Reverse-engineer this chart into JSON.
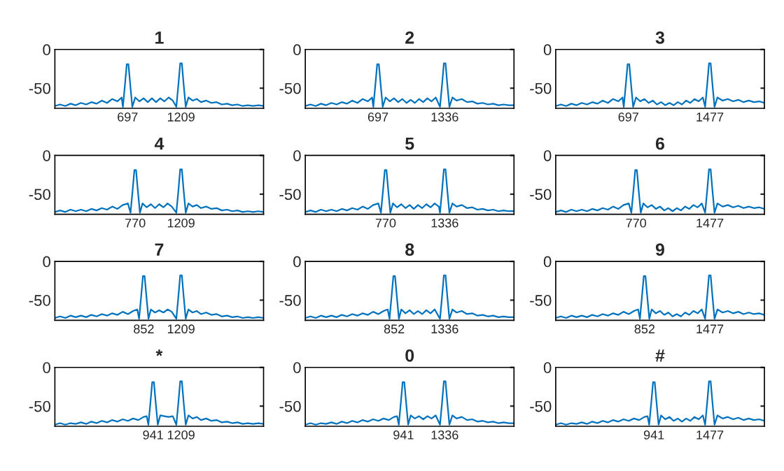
{
  "chart_data": [
    {
      "type": "line",
      "title": "1",
      "color": "#0072bd",
      "xlim": [
        0,
        2000
      ],
      "xticks": [
        697,
        1209
      ],
      "ylim": [
        -76,
        0
      ],
      "yticks": [
        -50,
        0
      ],
      "x": [
        0,
        50,
        100,
        150,
        200,
        250,
        300,
        350,
        400,
        450,
        500,
        550,
        600,
        640,
        652,
        672,
        689,
        705,
        722,
        742,
        770,
        810,
        850,
        890,
        930,
        970,
        1010,
        1050,
        1090,
        1130,
        1164,
        1184,
        1201,
        1217,
        1234,
        1254,
        1280,
        1320,
        1360,
        1400,
        1450,
        1500,
        1550,
        1600,
        1650,
        1700,
        1750,
        1800,
        1850,
        1900,
        1950,
        2000
      ],
      "values": [
        -73,
        -71,
        -73,
        -70,
        -72,
        -69,
        -71,
        -68,
        -70,
        -66,
        -69,
        -64,
        -67,
        -62,
        -74,
        -45,
        -19,
        -19,
        -45,
        -74,
        -62,
        -67,
        -63,
        -68,
        -63,
        -68,
        -63,
        -67,
        -62,
        -66,
        -74,
        -45,
        -18,
        -18,
        -45,
        -74,
        -62,
        -66,
        -64,
        -68,
        -66,
        -69,
        -68,
        -71,
        -70,
        -72,
        -71,
        -73,
        -72,
        -73,
        -72,
        -73
      ]
    },
    {
      "type": "line",
      "title": "2",
      "color": "#0072bd",
      "xlim": [
        0,
        2000
      ],
      "xticks": [
        697,
        1336
      ],
      "ylim": [
        -76,
        0
      ],
      "yticks": [
        -50,
        0
      ],
      "x": [
        0,
        50,
        100,
        150,
        200,
        250,
        300,
        350,
        400,
        450,
        500,
        550,
        600,
        640,
        652,
        672,
        689,
        705,
        722,
        742,
        770,
        810,
        850,
        890,
        930,
        970,
        1010,
        1050,
        1090,
        1130,
        1170,
        1210,
        1250,
        1291,
        1311,
        1328,
        1344,
        1361,
        1381,
        1410,
        1450,
        1500,
        1550,
        1600,
        1650,
        1700,
        1750,
        1800,
        1850,
        1900,
        1950,
        2000
      ],
      "values": [
        -73,
        -71,
        -73,
        -70,
        -72,
        -69,
        -71,
        -68,
        -70,
        -66,
        -69,
        -64,
        -67,
        -62,
        -74,
        -45,
        -19,
        -19,
        -45,
        -74,
        -62,
        -67,
        -63,
        -68,
        -64,
        -69,
        -65,
        -69,
        -64,
        -68,
        -63,
        -67,
        -62,
        -74,
        -45,
        -18,
        -18,
        -45,
        -74,
        -62,
        -66,
        -64,
        -68,
        -67,
        -70,
        -69,
        -71,
        -70,
        -72,
        -71,
        -72,
        -72
      ]
    },
    {
      "type": "line",
      "title": "3",
      "color": "#0072bd",
      "xlim": [
        0,
        2000
      ],
      "xticks": [
        697,
        1477
      ],
      "ylim": [
        -76,
        0
      ],
      "yticks": [
        -50,
        0
      ],
      "x": [
        0,
        50,
        100,
        150,
        200,
        250,
        300,
        350,
        400,
        450,
        500,
        550,
        600,
        640,
        652,
        672,
        689,
        705,
        722,
        742,
        770,
        810,
        850,
        890,
        930,
        970,
        1010,
        1050,
        1090,
        1130,
        1170,
        1210,
        1250,
        1290,
        1330,
        1370,
        1410,
        1432,
        1452,
        1469,
        1485,
        1502,
        1522,
        1550,
        1600,
        1650,
        1700,
        1750,
        1800,
        1850,
        1900,
        1950,
        2000
      ],
      "values": [
        -73,
        -71,
        -73,
        -70,
        -72,
        -69,
        -71,
        -68,
        -70,
        -66,
        -69,
        -64,
        -67,
        -62,
        -74,
        -45,
        -19,
        -19,
        -45,
        -74,
        -62,
        -67,
        -64,
        -69,
        -66,
        -71,
        -68,
        -72,
        -69,
        -72,
        -68,
        -71,
        -66,
        -69,
        -64,
        -67,
        -62,
        -74,
        -45,
        -18,
        -18,
        -45,
        -74,
        -62,
        -66,
        -64,
        -67,
        -65,
        -68,
        -66,
        -68,
        -67,
        -69
      ]
    },
    {
      "type": "line",
      "title": "4",
      "color": "#0072bd",
      "xlim": [
        0,
        2000
      ],
      "xticks": [
        770,
        1209
      ],
      "ylim": [
        -76,
        0
      ],
      "yticks": [
        -50,
        0
      ],
      "x": [
        0,
        50,
        100,
        150,
        200,
        250,
        300,
        350,
        400,
        450,
        500,
        550,
        600,
        650,
        700,
        725,
        745,
        762,
        778,
        795,
        815,
        840,
        880,
        920,
        960,
        1000,
        1040,
        1080,
        1120,
        1164,
        1184,
        1201,
        1217,
        1234,
        1254,
        1280,
        1320,
        1360,
        1400,
        1450,
        1500,
        1550,
        1600,
        1650,
        1700,
        1750,
        1800,
        1850,
        1900,
        1950,
        2000
      ],
      "values": [
        -73,
        -71,
        -73,
        -70,
        -72,
        -70,
        -72,
        -69,
        -71,
        -68,
        -70,
        -66,
        -69,
        -64,
        -62,
        -74,
        -45,
        -19,
        -19,
        -45,
        -74,
        -62,
        -67,
        -63,
        -68,
        -63,
        -67,
        -62,
        -66,
        -74,
        -45,
        -18,
        -18,
        -45,
        -74,
        -62,
        -66,
        -64,
        -68,
        -66,
        -69,
        -68,
        -71,
        -70,
        -72,
        -71,
        -73,
        -72,
        -73,
        -72,
        -73
      ]
    },
    {
      "type": "line",
      "title": "5",
      "color": "#0072bd",
      "xlim": [
        0,
        2000
      ],
      "xticks": [
        770,
        1336
      ],
      "ylim": [
        -76,
        0
      ],
      "yticks": [
        -50,
        0
      ],
      "x": [
        0,
        50,
        100,
        150,
        200,
        250,
        300,
        350,
        400,
        450,
        500,
        550,
        600,
        650,
        700,
        725,
        745,
        762,
        778,
        795,
        815,
        840,
        880,
        920,
        960,
        1000,
        1040,
        1080,
        1120,
        1160,
        1200,
        1240,
        1280,
        1291,
        1311,
        1328,
        1344,
        1361,
        1381,
        1410,
        1450,
        1500,
        1550,
        1600,
        1650,
        1700,
        1750,
        1800,
        1850,
        1900,
        1950,
        2000
      ],
      "values": [
        -73,
        -71,
        -73,
        -70,
        -72,
        -70,
        -72,
        -69,
        -71,
        -68,
        -70,
        -66,
        -69,
        -64,
        -62,
        -74,
        -45,
        -19,
        -19,
        -45,
        -74,
        -62,
        -67,
        -63,
        -68,
        -64,
        -69,
        -64,
        -68,
        -63,
        -67,
        -62,
        -66,
        -74,
        -45,
        -18,
        -18,
        -45,
        -74,
        -62,
        -66,
        -64,
        -68,
        -67,
        -70,
        -69,
        -71,
        -70,
        -72,
        -71,
        -72,
        -72
      ]
    },
    {
      "type": "line",
      "title": "6",
      "color": "#0072bd",
      "xlim": [
        0,
        2000
      ],
      "xticks": [
        770,
        1477
      ],
      "ylim": [
        -76,
        0
      ],
      "yticks": [
        -50,
        0
      ],
      "x": [
        0,
        50,
        100,
        150,
        200,
        250,
        300,
        350,
        400,
        450,
        500,
        550,
        600,
        650,
        700,
        725,
        745,
        762,
        778,
        795,
        815,
        840,
        880,
        920,
        960,
        1000,
        1040,
        1080,
        1120,
        1160,
        1200,
        1240,
        1280,
        1320,
        1360,
        1400,
        1432,
        1452,
        1469,
        1485,
        1502,
        1522,
        1550,
        1600,
        1650,
        1700,
        1750,
        1800,
        1850,
        1900,
        1950,
        2000
      ],
      "values": [
        -73,
        -71,
        -73,
        -70,
        -72,
        -70,
        -72,
        -69,
        -71,
        -68,
        -70,
        -66,
        -69,
        -64,
        -62,
        -74,
        -45,
        -19,
        -19,
        -45,
        -74,
        -62,
        -67,
        -64,
        -69,
        -66,
        -71,
        -68,
        -72,
        -68,
        -71,
        -66,
        -69,
        -64,
        -67,
        -62,
        -74,
        -45,
        -18,
        -18,
        -45,
        -74,
        -62,
        -66,
        -64,
        -67,
        -65,
        -68,
        -66,
        -68,
        -67,
        -69
      ]
    },
    {
      "type": "line",
      "title": "7",
      "color": "#0072bd",
      "xlim": [
        0,
        2000
      ],
      "xticks": [
        852,
        1209
      ],
      "ylim": [
        -76,
        0
      ],
      "yticks": [
        -50,
        0
      ],
      "x": [
        0,
        50,
        100,
        150,
        200,
        250,
        300,
        350,
        400,
        450,
        500,
        550,
        600,
        650,
        700,
        750,
        790,
        807,
        827,
        844,
        860,
        877,
        897,
        920,
        960,
        1000,
        1040,
        1080,
        1120,
        1164,
        1184,
        1201,
        1217,
        1234,
        1254,
        1280,
        1320,
        1360,
        1400,
        1450,
        1500,
        1550,
        1600,
        1650,
        1700,
        1750,
        1800,
        1850,
        1900,
        1950,
        2000
      ],
      "values": [
        -73,
        -71,
        -73,
        -70,
        -72,
        -70,
        -72,
        -69,
        -71,
        -68,
        -70,
        -67,
        -69,
        -65,
        -68,
        -64,
        -62,
        -74,
        -45,
        -19,
        -19,
        -45,
        -74,
        -62,
        -66,
        -63,
        -66,
        -62,
        -65,
        -74,
        -45,
        -18,
        -18,
        -45,
        -74,
        -62,
        -66,
        -64,
        -68,
        -66,
        -69,
        -68,
        -71,
        -70,
        -72,
        -71,
        -73,
        -72,
        -73,
        -72,
        -73
      ]
    },
    {
      "type": "line",
      "title": "8",
      "color": "#0072bd",
      "xlim": [
        0,
        2000
      ],
      "xticks": [
        852,
        1336
      ],
      "ylim": [
        -76,
        0
      ],
      "yticks": [
        -50,
        0
      ],
      "x": [
        0,
        50,
        100,
        150,
        200,
        250,
        300,
        350,
        400,
        450,
        500,
        550,
        600,
        650,
        700,
        750,
        790,
        807,
        827,
        844,
        860,
        877,
        897,
        920,
        960,
        1000,
        1040,
        1080,
        1120,
        1160,
        1200,
        1240,
        1291,
        1311,
        1328,
        1344,
        1361,
        1381,
        1410,
        1450,
        1500,
        1550,
        1600,
        1650,
        1700,
        1750,
        1800,
        1850,
        1900,
        1950,
        2000
      ],
      "values": [
        -73,
        -71,
        -73,
        -70,
        -72,
        -70,
        -72,
        -69,
        -71,
        -68,
        -70,
        -67,
        -69,
        -65,
        -68,
        -64,
        -62,
        -74,
        -45,
        -19,
        -19,
        -45,
        -74,
        -62,
        -67,
        -63,
        -68,
        -64,
        -68,
        -63,
        -67,
        -62,
        -74,
        -45,
        -18,
        -18,
        -45,
        -74,
        -62,
        -66,
        -64,
        -68,
        -67,
        -70,
        -69,
        -71,
        -70,
        -72,
        -71,
        -72,
        -72
      ]
    },
    {
      "type": "line",
      "title": "9",
      "color": "#0072bd",
      "xlim": [
        0,
        2000
      ],
      "xticks": [
        852,
        1477
      ],
      "ylim": [
        -76,
        0
      ],
      "yticks": [
        -50,
        0
      ],
      "x": [
        0,
        50,
        100,
        150,
        200,
        250,
        300,
        350,
        400,
        450,
        500,
        550,
        600,
        650,
        700,
        750,
        790,
        807,
        827,
        844,
        860,
        877,
        897,
        920,
        960,
        1000,
        1040,
        1080,
        1120,
        1160,
        1200,
        1240,
        1280,
        1320,
        1360,
        1400,
        1432,
        1452,
        1469,
        1485,
        1502,
        1522,
        1550,
        1600,
        1650,
        1700,
        1750,
        1800,
        1850,
        1900,
        1950,
        2000
      ],
      "values": [
        -73,
        -71,
        -73,
        -70,
        -72,
        -70,
        -72,
        -69,
        -71,
        -68,
        -70,
        -67,
        -69,
        -65,
        -68,
        -64,
        -62,
        -74,
        -45,
        -19,
        -19,
        -45,
        -74,
        -62,
        -67,
        -64,
        -69,
        -66,
        -71,
        -68,
        -71,
        -66,
        -69,
        -64,
        -67,
        -62,
        -74,
        -45,
        -18,
        -18,
        -45,
        -74,
        -62,
        -66,
        -64,
        -67,
        -65,
        -68,
        -66,
        -68,
        -67,
        -69
      ]
    },
    {
      "type": "line",
      "title": "*",
      "color": "#0072bd",
      "xlim": [
        0,
        2000
      ],
      "xticks": [
        941,
        1209
      ],
      "ylim": [
        -76,
        0
      ],
      "yticks": [
        -50,
        0
      ],
      "x": [
        0,
        50,
        100,
        150,
        200,
        250,
        300,
        350,
        400,
        450,
        500,
        550,
        600,
        650,
        700,
        750,
        800,
        850,
        880,
        896,
        916,
        933,
        949,
        966,
        986,
        1010,
        1050,
        1090,
        1130,
        1164,
        1184,
        1201,
        1217,
        1234,
        1254,
        1280,
        1320,
        1360,
        1400,
        1450,
        1500,
        1550,
        1600,
        1650,
        1700,
        1750,
        1800,
        1850,
        1900,
        1950,
        2000
      ],
      "values": [
        -74,
        -72,
        -74,
        -72,
        -73,
        -71,
        -73,
        -70,
        -72,
        -69,
        -71,
        -68,
        -70,
        -67,
        -69,
        -66,
        -68,
        -64,
        -63,
        -74,
        -45,
        -19,
        -19,
        -45,
        -74,
        -62,
        -63,
        -64,
        -63,
        -74,
        -45,
        -18,
        -18,
        -45,
        -74,
        -62,
        -66,
        -64,
        -68,
        -66,
        -69,
        -68,
        -71,
        -70,
        -72,
        -71,
        -73,
        -72,
        -73,
        -72,
        -73
      ]
    },
    {
      "type": "line",
      "title": "0",
      "color": "#0072bd",
      "xlim": [
        0,
        2000
      ],
      "xticks": [
        941,
        1336
      ],
      "ylim": [
        -76,
        0
      ],
      "yticks": [
        -50,
        0
      ],
      "x": [
        0,
        50,
        100,
        150,
        200,
        250,
        300,
        350,
        400,
        450,
        500,
        550,
        600,
        650,
        700,
        750,
        800,
        850,
        880,
        896,
        916,
        933,
        949,
        966,
        986,
        1010,
        1050,
        1090,
        1130,
        1170,
        1210,
        1250,
        1291,
        1311,
        1328,
        1344,
        1361,
        1381,
        1410,
        1450,
        1500,
        1550,
        1600,
        1650,
        1700,
        1750,
        1800,
        1850,
        1900,
        1950,
        2000
      ],
      "values": [
        -74,
        -72,
        -74,
        -72,
        -73,
        -71,
        -73,
        -70,
        -72,
        -69,
        -71,
        -68,
        -70,
        -67,
        -69,
        -66,
        -68,
        -64,
        -63,
        -74,
        -45,
        -19,
        -19,
        -45,
        -74,
        -62,
        -66,
        -63,
        -67,
        -63,
        -66,
        -62,
        -74,
        -45,
        -18,
        -18,
        -45,
        -74,
        -62,
        -66,
        -64,
        -68,
        -67,
        -70,
        -69,
        -71,
        -70,
        -72,
        -71,
        -72,
        -72
      ]
    },
    {
      "type": "line",
      "title": "#",
      "color": "#0072bd",
      "xlim": [
        0,
        2000
      ],
      "xticks": [
        941,
        1477
      ],
      "ylim": [
        -76,
        0
      ],
      "yticks": [
        -50,
        0
      ],
      "x": [
        0,
        50,
        100,
        150,
        200,
        250,
        300,
        350,
        400,
        450,
        500,
        550,
        600,
        650,
        700,
        750,
        800,
        850,
        880,
        896,
        916,
        933,
        949,
        966,
        986,
        1010,
        1050,
        1090,
        1130,
        1170,
        1210,
        1250,
        1290,
        1330,
        1370,
        1410,
        1432,
        1452,
        1469,
        1485,
        1502,
        1522,
        1550,
        1600,
        1650,
        1700,
        1750,
        1800,
        1850,
        1900,
        1950,
        2000
      ],
      "values": [
        -74,
        -72,
        -74,
        -72,
        -73,
        -71,
        -73,
        -70,
        -72,
        -69,
        -71,
        -68,
        -70,
        -67,
        -69,
        -66,
        -68,
        -64,
        -63,
        -74,
        -45,
        -19,
        -19,
        -45,
        -74,
        -62,
        -67,
        -64,
        -69,
        -66,
        -70,
        -66,
        -69,
        -64,
        -67,
        -62,
        -74,
        -45,
        -18,
        -18,
        -45,
        -74,
        -62,
        -66,
        -64,
        -67,
        -65,
        -68,
        -66,
        -68,
        -67,
        -69
      ]
    }
  ]
}
